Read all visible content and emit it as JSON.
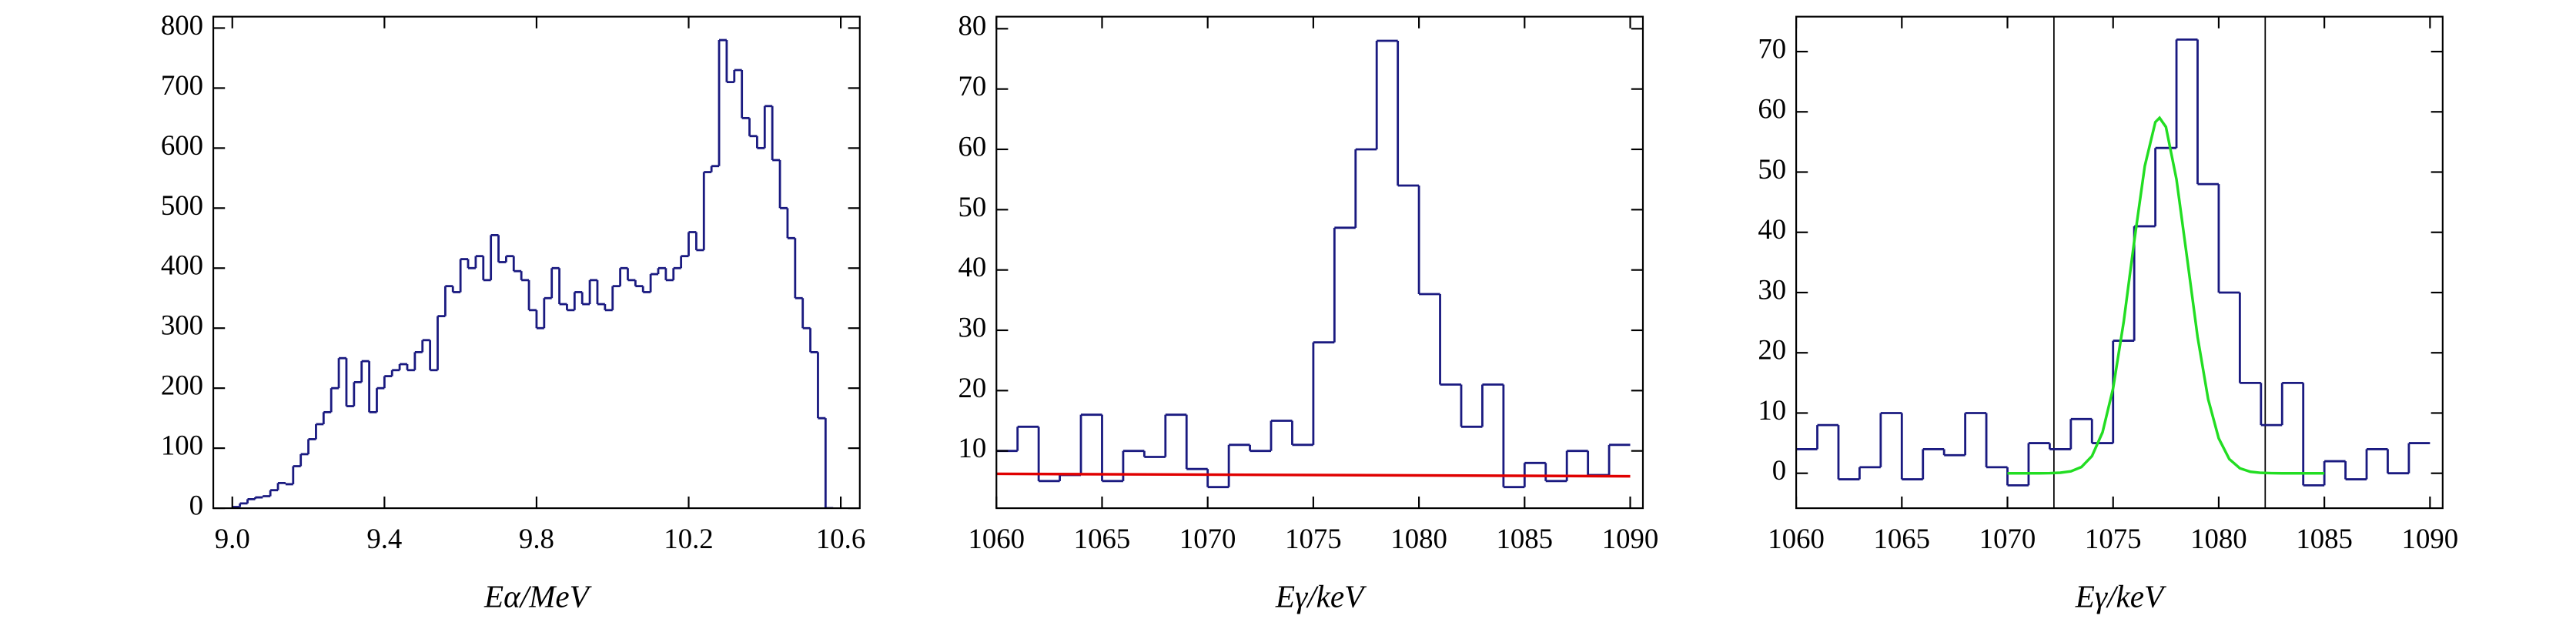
{
  "chart_data": [
    {
      "type": "histogram",
      "color": "#1a1a80",
      "x_label": "Eα/MeV",
      "bins": [
        9,
        9.02,
        9.04,
        9.06,
        9.08,
        9.1,
        9.12,
        9.14,
        9.16,
        9.18,
        9.2,
        9.22,
        9.24,
        9.26,
        9.28,
        9.3,
        9.32,
        9.34,
        9.36,
        9.38,
        9.4,
        9.42,
        9.44,
        9.46,
        9.48,
        9.5,
        9.52,
        9.54,
        9.56,
        9.58,
        9.6,
        9.62,
        9.64,
        9.66,
        9.68,
        9.7,
        9.72,
        9.74,
        9.76,
        9.78,
        9.8,
        9.82,
        9.84,
        9.86,
        9.88,
        9.9,
        9.92,
        9.94,
        9.96,
        9.98,
        10,
        10.02,
        10.04,
        10.06,
        10.08,
        10.1,
        10.12,
        10.14,
        10.16,
        10.18,
        10.2,
        10.22,
        10.24,
        10.26,
        10.28,
        10.3,
        10.32,
        10.34,
        10.36,
        10.38,
        10.4,
        10.42,
        10.44,
        10.46,
        10.48,
        10.5,
        10.52,
        10.54,
        10.56,
        10.58
      ],
      "values": [
        2,
        8,
        15,
        18,
        20,
        30,
        42,
        40,
        70,
        90,
        115,
        140,
        160,
        200,
        250,
        170,
        210,
        245,
        160,
        200,
        220,
        230,
        240,
        230,
        260,
        280,
        230,
        320,
        370,
        360,
        415,
        400,
        420,
        380,
        455,
        410,
        420,
        395,
        380,
        330,
        300,
        350,
        400,
        340,
        330,
        360,
        340,
        380,
        340,
        330,
        370,
        400,
        380,
        370,
        360,
        390,
        400,
        380,
        400,
        420,
        460,
        430,
        560,
        570,
        780,
        710,
        730,
        650,
        620,
        600,
        670,
        580,
        500,
        450,
        350,
        300,
        260,
        150,
        0
      ],
      "xlim": [
        8.95,
        10.65
      ],
      "ylim": [
        0,
        819
      ],
      "xticks": [
        {
          "value": 9,
          "label": "9.0"
        },
        9.4,
        9.8,
        10.2,
        10.6
      ],
      "yticks": [
        0,
        100,
        200,
        300,
        400,
        500,
        600,
        700,
        800
      ]
    },
    {
      "type": "histogram",
      "color": "#1a1a80",
      "x_label": "Eγ/keV",
      "bins": [
        1060,
        1061,
        1062,
        1063,
        1064,
        1065,
        1066,
        1067,
        1068,
        1069,
        1070,
        1071,
        1072,
        1073,
        1074,
        1075,
        1076,
        1077,
        1078,
        1079,
        1080,
        1081,
        1082,
        1083,
        1084,
        1085,
        1086,
        1087,
        1088,
        1089,
        1090
      ],
      "values": [
        10,
        14,
        5,
        6,
        16,
        5,
        10,
        9,
        16,
        7,
        4,
        11,
        10,
        15,
        11,
        28,
        47,
        60,
        78,
        54,
        36,
        21,
        14,
        21,
        4,
        8,
        5,
        10,
        6,
        11
      ],
      "lines": [
        {
          "color": "#e00000",
          "x": [
            1060,
            1090
          ],
          "y": [
            6.2,
            5.8
          ]
        }
      ],
      "xlim": [
        1060,
        1090.6
      ],
      "ylim": [
        0.5,
        82
      ],
      "xticks": [
        1060,
        1065,
        1070,
        1075,
        1080,
        1085,
        1090
      ],
      "yticks": [
        10,
        20,
        30,
        40,
        50,
        60,
        70,
        80
      ]
    },
    {
      "type": "histogram",
      "color": "#1a1a80",
      "x_label": "Eγ/keV",
      "bins": [
        1060,
        1061,
        1062,
        1063,
        1064,
        1065,
        1066,
        1067,
        1068,
        1069,
        1070,
        1071,
        1072,
        1073,
        1074,
        1075,
        1076,
        1077,
        1078,
        1079,
        1080,
        1081,
        1082,
        1083,
        1084,
        1085,
        1086,
        1087,
        1088,
        1089,
        1090
      ],
      "values": [
        4,
        8,
        -1,
        1,
        10,
        -1,
        4,
        3,
        10,
        1,
        -2,
        5,
        4,
        9,
        5,
        22,
        41,
        54,
        72,
        48,
        30,
        15,
        8,
        15,
        -2,
        2,
        -1,
        4,
        0,
        5
      ],
      "vlines": [
        1072.2,
        1082.2
      ],
      "lines": [
        {
          "color": "#22dd22",
          "x": [
            1070,
            1070.5,
            1071,
            1071.5,
            1072,
            1072.5,
            1073,
            1073.5,
            1074,
            1074.5,
            1075,
            1075.5,
            1076,
            1076.5,
            1077,
            1077.2,
            1077.5,
            1078,
            1078.5,
            1079,
            1079.5,
            1080,
            1080.5,
            1081,
            1081.5,
            1082,
            1082.5,
            1083,
            1084,
            1085
          ],
          "y": [
            0,
            0,
            0,
            0,
            0.02,
            0.09,
            0.32,
            1.03,
            2.85,
            6.8,
            14.1,
            25.1,
            38.5,
            51,
            58.3,
            59,
            57.5,
            48.8,
            35.8,
            22.6,
            12.3,
            5.8,
            2.36,
            0.83,
            0.25,
            0.07,
            0.02,
            0,
            0,
            0
          ]
        }
      ],
      "xlim": [
        1060,
        1090.6
      ],
      "ylim": [
        -5.8,
        75.8
      ],
      "xticks": [
        1060,
        1065,
        1070,
        1075,
        1080,
        1085,
        1090
      ],
      "yticks": [
        0,
        10,
        20,
        30,
        40,
        50,
        60,
        70
      ]
    }
  ]
}
